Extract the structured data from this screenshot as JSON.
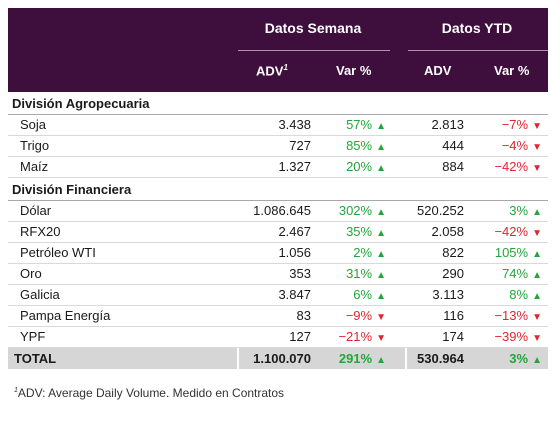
{
  "header": {
    "group_week": "Datos Semana",
    "group_ytd": "Datos YTD",
    "col_adv": "ADV",
    "col_adv_mark": "1",
    "col_var": "Var %",
    "col_adv_ytd": "ADV",
    "col_var_ytd": "Var %"
  },
  "sections": [
    {
      "title": "División Agropecuaria",
      "rows": [
        {
          "label": "Soja",
          "adv_week": "3.438",
          "var_week": "57%",
          "var_week_dir": "up",
          "adv_ytd": "2.813",
          "var_ytd": "-7%",
          "var_ytd_dir": "down"
        },
        {
          "label": "Trigo",
          "adv_week": "727",
          "var_week": "85%",
          "var_week_dir": "up",
          "adv_ytd": "444",
          "var_ytd": "-4%",
          "var_ytd_dir": "down"
        },
        {
          "label": "Maíz",
          "adv_week": "1.327",
          "var_week": "20%",
          "var_week_dir": "up",
          "adv_ytd": "884",
          "var_ytd": "-42%",
          "var_ytd_dir": "down"
        }
      ]
    },
    {
      "title": "División Financiera",
      "rows": [
        {
          "label": "Dólar",
          "adv_week": "1.086.645",
          "var_week": "302%",
          "var_week_dir": "up",
          "adv_ytd": "520.252",
          "var_ytd": "3%",
          "var_ytd_dir": "up"
        },
        {
          "label": "RFX20",
          "adv_week": "2.467",
          "var_week": "35%",
          "var_week_dir": "up",
          "adv_ytd": "2.058",
          "var_ytd": "-42%",
          "var_ytd_dir": "down"
        },
        {
          "label": "Petróleo WTI",
          "adv_week": "1.056",
          "var_week": "2%",
          "var_week_dir": "up",
          "adv_ytd": "822",
          "var_ytd": "105%",
          "var_ytd_dir": "up"
        },
        {
          "label": "Oro",
          "adv_week": "353",
          "var_week": "31%",
          "var_week_dir": "up",
          "adv_ytd": "290",
          "var_ytd": "74%",
          "var_ytd_dir": "up"
        },
        {
          "label": "Galicia",
          "adv_week": "3.847",
          "var_week": "6%",
          "var_week_dir": "up",
          "adv_ytd": "3.113",
          "var_ytd": "8%",
          "var_ytd_dir": "up"
        },
        {
          "label": "Pampa Energía",
          "adv_week": "83",
          "var_week": "-9%",
          "var_week_dir": "down",
          "adv_ytd": "116",
          "var_ytd": "-13%",
          "var_ytd_dir": "down"
        },
        {
          "label": "YPF",
          "adv_week": "127",
          "var_week": "-21%",
          "var_week_dir": "down",
          "adv_ytd": "174",
          "var_ytd": "-39%",
          "var_ytd_dir": "down"
        }
      ]
    }
  ],
  "total": {
    "label": "TOTAL",
    "adv_week": "1.100.070",
    "var_week": "291%",
    "var_week_dir": "up",
    "adv_ytd": "530.964",
    "var_ytd": "3%",
    "var_ytd_dir": "up"
  },
  "footnote": {
    "mark": "1",
    "text": "ADV: Average Daily Volume. Medido en Contratos"
  },
  "colors": {
    "header_bg": "#3e0f3c",
    "up": "#22a53a",
    "down": "#e0252f",
    "total_bg": "#d6d6d6"
  },
  "icons": {
    "up": "triangle-up-icon",
    "down": "triangle-down-icon"
  }
}
